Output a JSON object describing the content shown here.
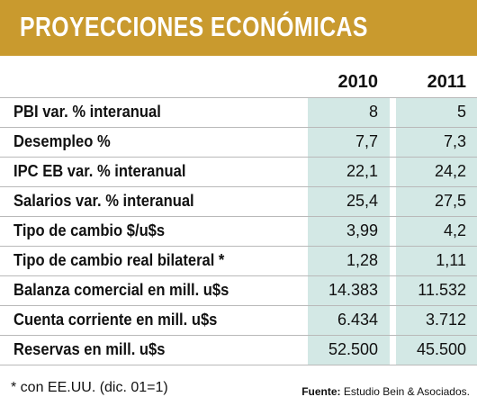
{
  "title": "PROYECCIONES ECONÓMICAS",
  "table": {
    "columns": [
      "2010",
      "2011"
    ],
    "rows": [
      {
        "label": "PBI var. % interanual",
        "values": [
          "8",
          "5"
        ]
      },
      {
        "label": "Desempleo %",
        "values": [
          "7,7",
          "7,3"
        ]
      },
      {
        "label": "IPC EB var. % interanual",
        "values": [
          "22,1",
          "24,2"
        ]
      },
      {
        "label": "Salarios var. % interanual",
        "values": [
          "25,4",
          "27,5"
        ]
      },
      {
        "label": "Tipo de cambio $/u$s",
        "values": [
          "3,99",
          "4,2"
        ]
      },
      {
        "label": "Tipo de cambio real bilateral *",
        "values": [
          "1,28",
          "1,11"
        ]
      },
      {
        "label": "Balanza comercial en mill. u$s",
        "values": [
          "14.383",
          "11.532"
        ]
      },
      {
        "label": "Cuenta corriente en mill. u$s",
        "values": [
          "6.434",
          "3.712"
        ]
      },
      {
        "label": "Reservas en mill. u$s",
        "values": [
          "52.500",
          "45.500"
        ]
      }
    ]
  },
  "footnote": "* con EE.UU. (dic. 01=1)",
  "source": {
    "label": "Fuente:",
    "text": "Estudio Bein & Asociados."
  }
}
